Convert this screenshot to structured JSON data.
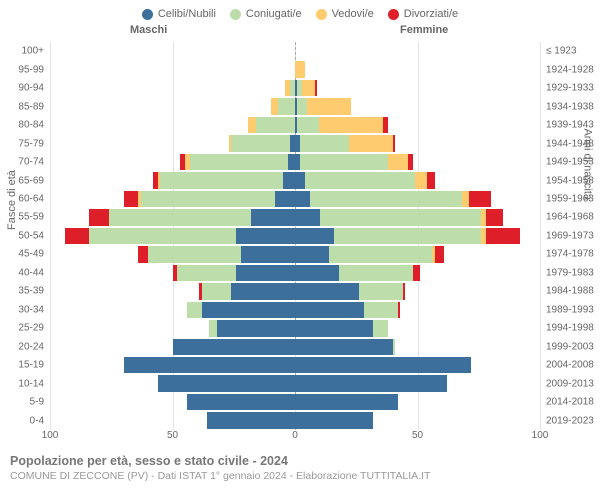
{
  "legend": [
    {
      "label": "Celibi/Nubili",
      "color": "#3c6f9c"
    },
    {
      "label": "Coniugati/e",
      "color": "#bdddab"
    },
    {
      "label": "Vedovi/e",
      "color": "#fecb6f"
    },
    {
      "label": "Divorziati/e",
      "color": "#de1f2a"
    }
  ],
  "headers": {
    "male": "Maschi",
    "female": "Femmine"
  },
  "axis_titles": {
    "left": "Fasce di età",
    "right": "Anni di nascita"
  },
  "chart": {
    "type": "population-pyramid",
    "max_value": 100,
    "x_ticks": [
      100,
      50,
      0,
      50,
      100
    ],
    "background_color": "#ffffff",
    "grid_color": "#e4e4e4",
    "label_fontsize": 10,
    "tick_fontsize": 10,
    "header_fontsize": 11
  },
  "rows": [
    {
      "age": "100+",
      "birth": "≤ 1923",
      "m": [
        0,
        0,
        0,
        0
      ],
      "f": [
        0,
        0,
        0,
        0
      ]
    },
    {
      "age": "95-99",
      "birth": "1924-1928",
      "m": [
        0,
        0,
        0,
        0
      ],
      "f": [
        0,
        0,
        4,
        0
      ]
    },
    {
      "age": "90-94",
      "birth": "1929-1933",
      "m": [
        0,
        2,
        2,
        0
      ],
      "f": [
        1,
        2,
        5,
        1
      ]
    },
    {
      "age": "85-89",
      "birth": "1934-1938",
      "m": [
        0,
        7,
        3,
        0
      ],
      "f": [
        1,
        4,
        18,
        0
      ]
    },
    {
      "age": "80-84",
      "birth": "1939-1943",
      "m": [
        0,
        16,
        3,
        0
      ],
      "f": [
        1,
        9,
        26,
        2
      ]
    },
    {
      "age": "75-79",
      "birth": "1944-1948",
      "m": [
        2,
        24,
        1,
        0
      ],
      "f": [
        2,
        20,
        18,
        1
      ]
    },
    {
      "age": "70-74",
      "birth": "1949-1953",
      "m": [
        3,
        40,
        2,
        2
      ],
      "f": [
        2,
        36,
        8,
        2
      ]
    },
    {
      "age": "65-69",
      "birth": "1954-1958",
      "m": [
        5,
        50,
        1,
        2
      ],
      "f": [
        4,
        45,
        5,
        3
      ]
    },
    {
      "age": "60-64",
      "birth": "1959-1963",
      "m": [
        8,
        55,
        1,
        6
      ],
      "f": [
        6,
        62,
        3,
        9
      ]
    },
    {
      "age": "55-59",
      "birth": "1964-1968",
      "m": [
        18,
        58,
        0,
        8
      ],
      "f": [
        10,
        66,
        2,
        7
      ]
    },
    {
      "age": "50-54",
      "birth": "1969-1973",
      "m": [
        24,
        60,
        0,
        10
      ],
      "f": [
        16,
        60,
        2,
        14
      ]
    },
    {
      "age": "45-49",
      "birth": "1974-1978",
      "m": [
        22,
        38,
        0,
        4
      ],
      "f": [
        14,
        42,
        1,
        4
      ]
    },
    {
      "age": "40-44",
      "birth": "1979-1983",
      "m": [
        24,
        24,
        0,
        2
      ],
      "f": [
        18,
        30,
        0,
        3
      ]
    },
    {
      "age": "35-39",
      "birth": "1984-1988",
      "m": [
        26,
        12,
        0,
        1
      ],
      "f": [
        26,
        18,
        0,
        1
      ]
    },
    {
      "age": "30-34",
      "birth": "1989-1993",
      "m": [
        38,
        6,
        0,
        0
      ],
      "f": [
        28,
        14,
        0,
        1
      ]
    },
    {
      "age": "25-29",
      "birth": "1994-1998",
      "m": [
        32,
        3,
        0,
        0
      ],
      "f": [
        32,
        6,
        0,
        0
      ]
    },
    {
      "age": "20-24",
      "birth": "1999-2003",
      "m": [
        50,
        0,
        0,
        0
      ],
      "f": [
        40,
        1,
        0,
        0
      ]
    },
    {
      "age": "15-19",
      "birth": "2004-2008",
      "m": [
        70,
        0,
        0,
        0
      ],
      "f": [
        72,
        0,
        0,
        0
      ]
    },
    {
      "age": "10-14",
      "birth": "2009-2013",
      "m": [
        56,
        0,
        0,
        0
      ],
      "f": [
        62,
        0,
        0,
        0
      ]
    },
    {
      "age": "5-9",
      "birth": "2014-2018",
      "m": [
        44,
        0,
        0,
        0
      ],
      "f": [
        42,
        0,
        0,
        0
      ]
    },
    {
      "age": "0-4",
      "birth": "2019-2023",
      "m": [
        36,
        0,
        0,
        0
      ],
      "f": [
        32,
        0,
        0,
        0
      ]
    }
  ],
  "footer": {
    "title": "Popolazione per età, sesso e stato civile - 2024",
    "subtitle": "COMUNE DI ZECCONE (PV) - Dati ISTAT 1° gennaio 2024 - Elaborazione TUTTITALIA.IT"
  }
}
